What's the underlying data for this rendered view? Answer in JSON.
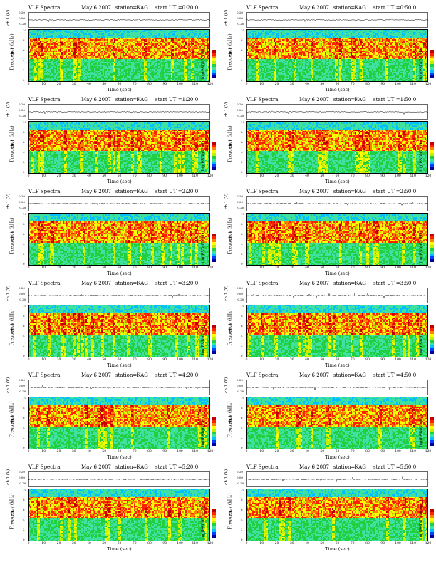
{
  "colors": {
    "grad": [
      "#0000a0",
      "#0040ff",
      "#00c0ff",
      "#40e0a0",
      "#20d040",
      "#c0f000",
      "#ffff00",
      "#ff8000",
      "#ff2000",
      "#c00000"
    ]
  },
  "panel_labels": {
    "wave_ylabel": "ch.1 (V)",
    "wave_ticks": [
      "0.20",
      "0.00",
      "-0.20"
    ],
    "spec_ylabel_top": "ch.1",
    "spec_ylabel": "Frequency (kHz)",
    "freq_ticks": [
      "10",
      "8",
      "6",
      "4",
      "2",
      "0"
    ],
    "xlabel": "Time (sec)",
    "xticks_left": [
      "0",
      "10",
      "20",
      "30",
      "40",
      "50",
      "60",
      "70",
      "80",
      "90",
      "100",
      "110",
      "120"
    ],
    "xticks_right": [
      "0",
      "10",
      "20",
      "30",
      "40",
      "50",
      "60",
      "70",
      "80",
      "90",
      "100",
      "110",
      "120"
    ],
    "cbar_label": "log(PSD)(V²/Hz)"
  },
  "panels": [
    {
      "title_left": "VLF Spectra",
      "title_date": "May 6 2007",
      "title_station": "station=KAG",
      "title_start": "start UT =0:20:0"
    },
    {
      "title_left": "VLF Spectra",
      "title_date": "May 6 2007",
      "title_station": "station=KAG",
      "title_start": "start UT =0:50:0"
    },
    {
      "title_left": "VLF Spectra",
      "title_date": "May 6 2007",
      "title_station": "station=KAG",
      "title_start": "start UT =1:20:0"
    },
    {
      "title_left": "VLF Spectra",
      "title_date": "May 6 2007",
      "title_station": "station=KAG",
      "title_start": "start UT =1:50:0"
    },
    {
      "title_left": "VLF Spectra",
      "title_date": "May 6 2007",
      "title_station": "station=KAG",
      "title_start": "start UT =2:20:0"
    },
    {
      "title_left": "VLF Spectra",
      "title_date": "May 6 2007",
      "title_station": "station=KAG",
      "title_start": "start UT =2:50:0"
    },
    {
      "title_left": "VLF Spectra",
      "title_date": "May 6 2007",
      "title_station": "station=KAG",
      "title_start": "start UT =3:20:0"
    },
    {
      "title_left": "VLF Spectra",
      "title_date": "May 6 2007",
      "title_station": "station=KAG",
      "title_start": "start UT =3:50:0"
    },
    {
      "title_left": "VLF Spectra",
      "title_date": "May 6 2007",
      "title_station": "station=KAG",
      "title_start": "start UT =4:20:0"
    },
    {
      "title_left": "VLF Spectra",
      "title_date": "May 6 2007",
      "title_station": "station=KAG",
      "title_start": "start UT =4:50:0"
    },
    {
      "title_left": "VLF Spectra",
      "title_date": "May 6 2007",
      "title_station": "station=KAG",
      "title_start": "start UT =5:20:0"
    },
    {
      "title_left": "VLF Spectra",
      "title_date": "May 6 2007",
      "title_station": "station=KAG",
      "title_start": "start UT =5:50:0"
    }
  ],
  "chart_data": {
    "type": "heatmap",
    "title": "VLF Spectra",
    "station": "KAG",
    "date": "May 6 2007",
    "xlabel": "Time (sec)",
    "ylabel": "Frequency (kHz)",
    "xlim": [
      0,
      120
    ],
    "ylim": [
      0,
      10
    ],
    "waveform_ylim": [
      -0.2,
      0.2
    ],
    "start_times_UT": [
      "0:20:0",
      "0:50:0",
      "1:20:0",
      "1:50:0",
      "2:20:0",
      "2:50:0",
      "3:20:0",
      "3:50:0",
      "4:20:0",
      "4:50:0",
      "5:20:0",
      "5:50:0"
    ],
    "colorbar_label": "log(PSD)(V²/Hz)"
  }
}
